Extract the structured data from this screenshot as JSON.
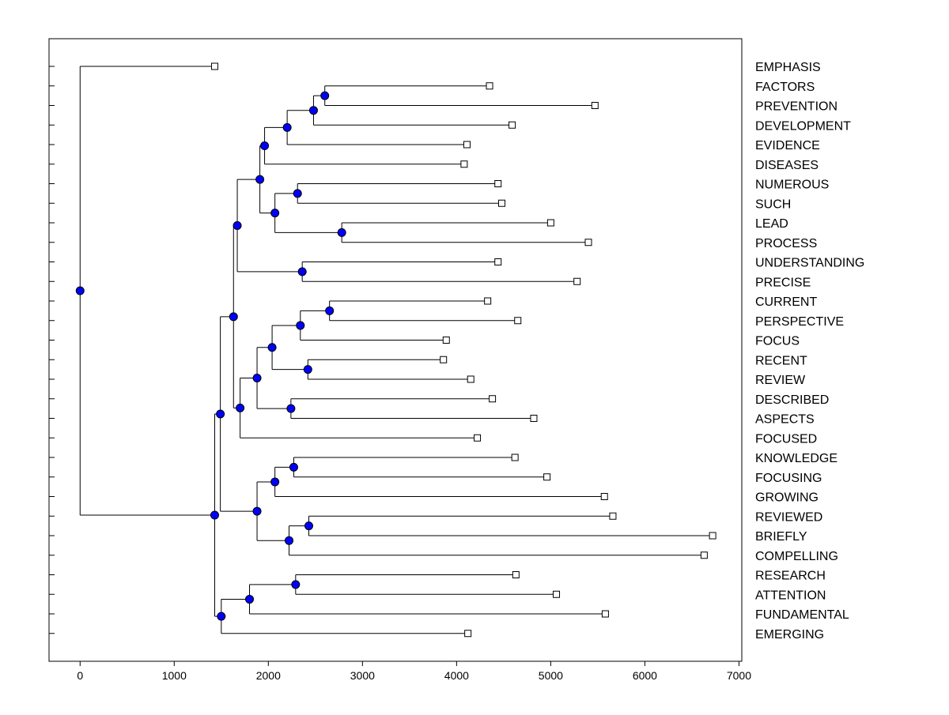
{
  "chart_data": {
    "type": "dendrogram",
    "orientation": "horizontal",
    "title": "",
    "xlabel": "",
    "ylabel": "",
    "xlim": [
      -330,
      7030
    ],
    "xticks": [
      0,
      1000,
      2000,
      3000,
      4000,
      5000,
      6000,
      7000
    ],
    "colors": {
      "node_fill": "#0000ff",
      "line": "#000000",
      "leaf_fill": "#ffffff"
    },
    "leaves": [
      {
        "label": "EMPHASIS",
        "value": 1430
      },
      {
        "label": "FACTORS",
        "value": 4350
      },
      {
        "label": "PREVENTION",
        "value": 5470
      },
      {
        "label": "DEVELOPMENT",
        "value": 4590
      },
      {
        "label": "EVIDENCE",
        "value": 4110
      },
      {
        "label": "DISEASES",
        "value": 4080
      },
      {
        "label": "NUMEROUS",
        "value": 4440
      },
      {
        "label": "SUCH",
        "value": 4480
      },
      {
        "label": "LEAD",
        "value": 5000
      },
      {
        "label": "PROCESS",
        "value": 5400
      },
      {
        "label": "UNDERSTANDING",
        "value": 4440
      },
      {
        "label": "PRECISE",
        "value": 5280
      },
      {
        "label": "CURRENT",
        "value": 4330
      },
      {
        "label": "PERSPECTIVE",
        "value": 4650
      },
      {
        "label": "FOCUS",
        "value": 3890
      },
      {
        "label": "RECENT",
        "value": 3860
      },
      {
        "label": "REVIEW",
        "value": 4150
      },
      {
        "label": "DESCRIBED",
        "value": 4380
      },
      {
        "label": "ASPECTS",
        "value": 4820
      },
      {
        "label": "FOCUSED",
        "value": 4220
      },
      {
        "label": "KNOWLEDGE",
        "value": 4620
      },
      {
        "label": "FOCUSING",
        "value": 4960
      },
      {
        "label": "GROWING",
        "value": 5570
      },
      {
        "label": "REVIEWED",
        "value": 5660
      },
      {
        "label": "BRIEFLY",
        "value": 6720
      },
      {
        "label": "COMPELLING",
        "value": 6630
      },
      {
        "label": "RESEARCH",
        "value": 4630
      },
      {
        "label": "ATTENTION",
        "value": 5060
      },
      {
        "label": "FUNDAMENTAL",
        "value": 5580
      },
      {
        "label": "EMERGING",
        "value": 4120
      }
    ],
    "merges": [
      {
        "id": "n1",
        "value": 2600,
        "children": [
          "FACTORS",
          "PREVENTION"
        ]
      },
      {
        "id": "n2",
        "value": 2480,
        "children": [
          "n1",
          "DEVELOPMENT"
        ]
      },
      {
        "id": "n3",
        "value": 2200,
        "children": [
          "n2",
          "EVIDENCE"
        ]
      },
      {
        "id": "n4",
        "value": 1960,
        "children": [
          "n3",
          "DISEASES"
        ]
      },
      {
        "id": "n5",
        "value": 2310,
        "children": [
          "NUMEROUS",
          "SUCH"
        ]
      },
      {
        "id": "n6",
        "value": 2780,
        "children": [
          "LEAD",
          "PROCESS"
        ]
      },
      {
        "id": "n7",
        "value": 2070,
        "children": [
          "n5",
          "n6"
        ]
      },
      {
        "id": "n8",
        "value": 1910,
        "children": [
          "n4",
          "n7"
        ]
      },
      {
        "id": "n9",
        "value": 2360,
        "children": [
          "UNDERSTANDING",
          "PRECISE"
        ]
      },
      {
        "id": "n10",
        "value": 1670,
        "children": [
          "n8",
          "n9"
        ]
      },
      {
        "id": "n11",
        "value": 2650,
        "children": [
          "CURRENT",
          "PERSPECTIVE"
        ]
      },
      {
        "id": "n12",
        "value": 2340,
        "children": [
          "n11",
          "FOCUS"
        ]
      },
      {
        "id": "n13",
        "value": 2420,
        "children": [
          "RECENT",
          "REVIEW"
        ]
      },
      {
        "id": "n14",
        "value": 2040,
        "children": [
          "n12",
          "n13"
        ]
      },
      {
        "id": "n15",
        "value": 2240,
        "children": [
          "DESCRIBED",
          "ASPECTS"
        ]
      },
      {
        "id": "n16",
        "value": 1880,
        "children": [
          "n14",
          "n15"
        ]
      },
      {
        "id": "n17",
        "value": 1700,
        "children": [
          "n16",
          "FOCUSED"
        ]
      },
      {
        "id": "n18",
        "value": 1630,
        "children": [
          "n10",
          "n17"
        ]
      },
      {
        "id": "n19",
        "value": 2270,
        "children": [
          "KNOWLEDGE",
          "FOCUSING"
        ]
      },
      {
        "id": "n20",
        "value": 2070,
        "children": [
          "n19",
          "GROWING"
        ]
      },
      {
        "id": "n21",
        "value": 2430,
        "children": [
          "REVIEWED",
          "BRIEFLY"
        ]
      },
      {
        "id": "n22",
        "value": 2220,
        "children": [
          "n21",
          "COMPELLING"
        ]
      },
      {
        "id": "n23",
        "value": 1880,
        "children": [
          "n20",
          "n22"
        ]
      },
      {
        "id": "n24",
        "value": 1490,
        "children": [
          "n18",
          "n23"
        ]
      },
      {
        "id": "n25",
        "value": 2290,
        "children": [
          "RESEARCH",
          "ATTENTION"
        ]
      },
      {
        "id": "n26",
        "value": 1800,
        "children": [
          "n25",
          "FUNDAMENTAL"
        ]
      },
      {
        "id": "n27",
        "value": 1500,
        "children": [
          "n26",
          "EMERGING"
        ]
      },
      {
        "id": "n28",
        "value": 1430,
        "children": [
          "n24",
          "n27"
        ]
      },
      {
        "id": "root",
        "value": 0,
        "children": [
          "EMPHASIS",
          "n28"
        ]
      }
    ]
  }
}
